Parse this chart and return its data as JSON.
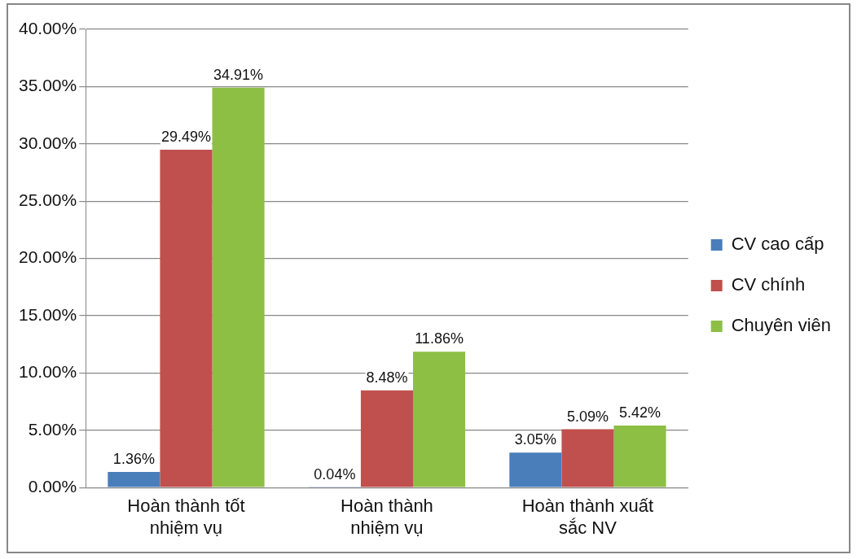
{
  "chart_data": {
    "type": "bar",
    "categories": [
      "Hoàn thành tốt nhiệm vụ",
      "Hoàn thành nhiệm vụ",
      "Hoàn thành xuất sắc NV"
    ],
    "series": [
      {
        "name": "CV cao cấp",
        "color": "#4a7ebb",
        "values": [
          1.36,
          0.04,
          3.05
        ],
        "value_labels": [
          "1.36%",
          "0.04%",
          "3.05%"
        ]
      },
      {
        "name": "CV chính",
        "color": "#c0504d",
        "values": [
          29.49,
          8.48,
          5.09
        ],
        "value_labels": [
          "29.49%",
          "8.48%",
          "5.09%"
        ]
      },
      {
        "name": "Chuyên viên",
        "color": "#8dbf45",
        "values": [
          34.91,
          11.86,
          5.42
        ],
        "value_labels": [
          "34.91%",
          "11.86%",
          "5.42%"
        ]
      }
    ],
    "ylim": [
      0,
      40
    ],
    "yticks": [
      {
        "value": 0,
        "label": "0.00%"
      },
      {
        "value": 5,
        "label": "5.00%"
      },
      {
        "value": 10,
        "label": "10.00%"
      },
      {
        "value": 15,
        "label": "15.00%"
      },
      {
        "value": 20,
        "label": "20.00%"
      },
      {
        "value": 25,
        "label": "25.00%"
      },
      {
        "value": 30,
        "label": "30.00%"
      },
      {
        "value": 35,
        "label": "35.00%"
      },
      {
        "value": 40,
        "label": "40.00%"
      }
    ],
    "grid": "y",
    "legend": "right"
  }
}
